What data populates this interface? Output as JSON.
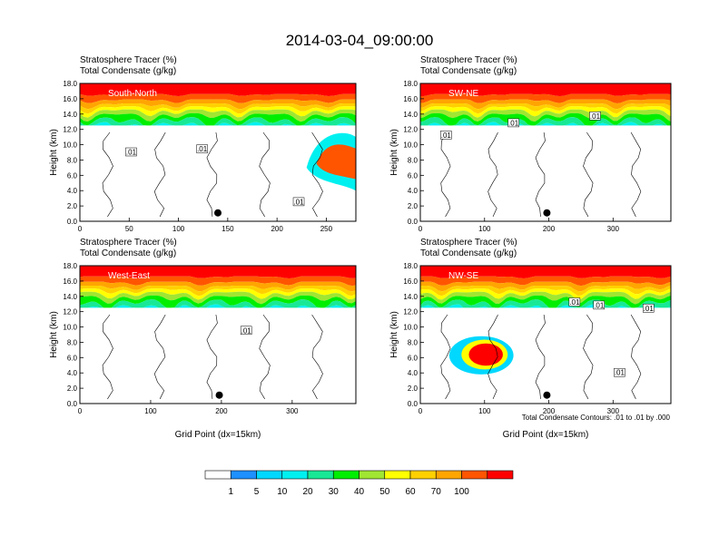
{
  "figure": {
    "title": "2014-03-04_09:00:00",
    "footnote": "Total Condensate Contours: .01 to .01 by .000"
  },
  "colorbar": {
    "levels": [
      "1",
      "5",
      "10",
      "20",
      "30",
      "40",
      "50",
      "60",
      "70",
      "100"
    ],
    "colors": [
      "#ffffff",
      "#1e90ff",
      "#00d8ff",
      "#00f0f0",
      "#18e896",
      "#00ee00",
      "#a0e632",
      "#ffff00",
      "#ffd000",
      "#ffa500",
      "#ff5500",
      "#ff0000"
    ]
  },
  "chart_data": [
    {
      "type": "heatmap",
      "title_line1": "Stratosphere Tracer   (%)",
      "title_line2": "Total Condensate   (g/kg)",
      "panel_label": "South-North",
      "ylabel": "Height (km)",
      "xlabel": "",
      "xlim": [
        0,
        280
      ],
      "ylim": [
        0,
        18
      ],
      "xticks": [
        0,
        50,
        100,
        150,
        200,
        250
      ],
      "yticks": [
        "0.0",
        "2.0",
        "4.0",
        "6.0",
        "8.0",
        "10.0",
        "12.0",
        "14.0",
        "16.0",
        "18.0"
      ],
      "contour_labels": [
        {
          "text": ".01",
          "x": 52,
          "y": 9.0
        },
        {
          "text": ".01",
          "x": 124,
          "y": 9.4
        },
        {
          "text": ".01",
          "x": 222,
          "y": 2.5
        }
      ],
      "marker": {
        "x": 140,
        "y": 1.1
      }
    },
    {
      "type": "heatmap",
      "title_line1": "Stratosphere Tracer   (%)",
      "title_line2": "Total Condensate   (g/kg)",
      "panel_label": "SW-NE",
      "ylabel": "Height (km)",
      "xlabel": "",
      "xlim": [
        0,
        390
      ],
      "ylim": [
        0,
        18
      ],
      "xticks": [
        0,
        100,
        200,
        300
      ],
      "yticks": [
        "0.0",
        "2.0",
        "4.0",
        "6.0",
        "8.0",
        "10.0",
        "12.0",
        "14.0",
        "16.0",
        "18.0"
      ],
      "contour_labels": [
        {
          "text": ".01",
          "x": 40,
          "y": 11.2
        },
        {
          "text": ".01",
          "x": 145,
          "y": 12.8
        },
        {
          "text": ".01",
          "x": 272,
          "y": 13.7
        }
      ],
      "marker": {
        "x": 197,
        "y": 1.1
      }
    },
    {
      "type": "heatmap",
      "title_line1": "Stratosphere Tracer   (%)",
      "title_line2": "Total Condensate   (g/kg)",
      "panel_label": "West-East",
      "ylabel": "Height (km)",
      "xlabel": "Grid Point (dx=15km)",
      "xlim": [
        0,
        390
      ],
      "ylim": [
        0,
        18
      ],
      "xticks": [
        0,
        100,
        200,
        300
      ],
      "yticks": [
        "0.0",
        "2.0",
        "4.0",
        "6.0",
        "8.0",
        "10.0",
        "12.0",
        "14.0",
        "16.0",
        "18.0"
      ],
      "contour_labels": [
        {
          "text": ".01",
          "x": 235,
          "y": 9.5
        }
      ],
      "marker": {
        "x": 197,
        "y": 1.1
      }
    },
    {
      "type": "heatmap",
      "title_line1": "Stratosphere Tracer   (%)",
      "title_line2": "Total Condensate   (g/kg)",
      "panel_label": "NW-SE",
      "ylabel": "Height (km)",
      "xlabel": "Grid Point (dx=15km)",
      "xlim": [
        0,
        390
      ],
      "ylim": [
        0,
        18
      ],
      "xticks": [
        0,
        100,
        200,
        300
      ],
      "yticks": [
        "0.0",
        "2.0",
        "4.0",
        "6.0",
        "8.0",
        "10.0",
        "12.0",
        "14.0",
        "16.0",
        "18.0"
      ],
      "contour_labels": [
        {
          "text": ".01",
          "x": 240,
          "y": 13.2
        },
        {
          "text": ".01",
          "x": 278,
          "y": 12.8
        },
        {
          "text": ".01",
          "x": 355,
          "y": 12.4
        },
        {
          "text": ".01",
          "x": 310,
          "y": 4.0
        }
      ],
      "marker": {
        "x": 197,
        "y": 1.1
      }
    }
  ]
}
